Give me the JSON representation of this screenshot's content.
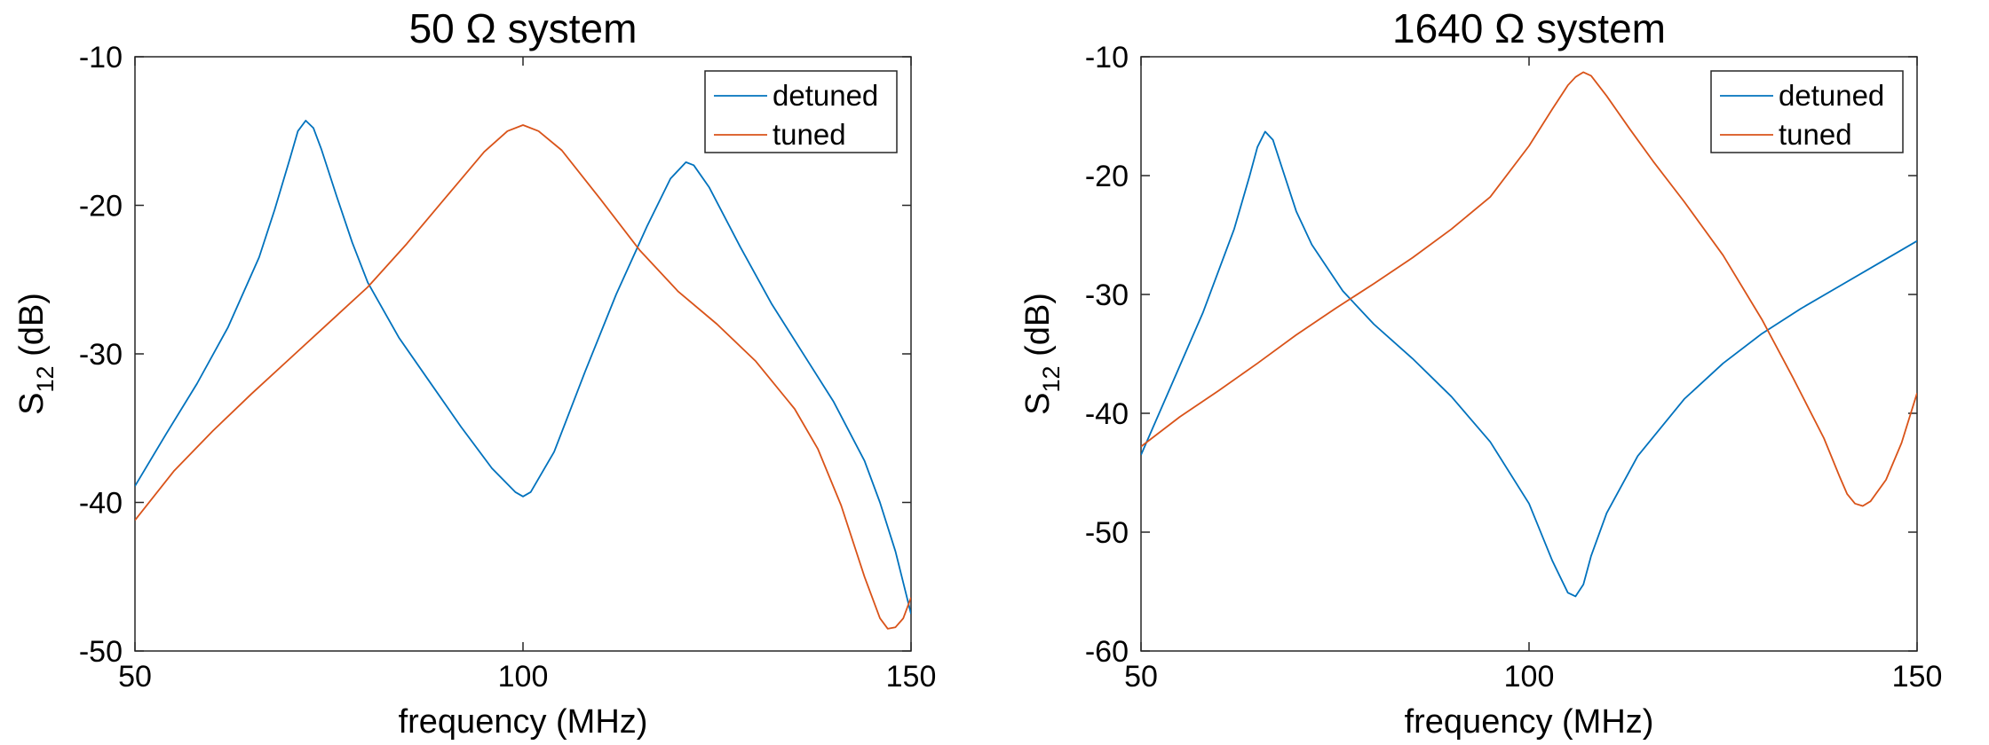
{
  "chart_data": [
    {
      "type": "line",
      "title": "50 Ω system",
      "xlabel": "frequency (MHz)",
      "ylabel_main": "S",
      "ylabel_sub": "12",
      "ylabel_tail": " (dB)",
      "xlim": [
        50,
        150
      ],
      "ylim": [
        -50,
        -10
      ],
      "xticks": [
        50,
        100,
        150
      ],
      "yticks": [
        -50,
        -40,
        -30,
        -20,
        -10
      ],
      "grid": false,
      "legend_position": "top-right",
      "series": [
        {
          "name": "detuned",
          "color": "#0072BD",
          "x": [
            50,
            54,
            58,
            62,
            66,
            68,
            70,
            71,
            72,
            73,
            74,
            76,
            78,
            80,
            84,
            88,
            92,
            96,
            99,
            100,
            101,
            104,
            108,
            112,
            116,
            119,
            121,
            122,
            124,
            128,
            132,
            136,
            140,
            144,
            146,
            148,
            150
          ],
          "y": [
            -38.9,
            -35.4,
            -32.0,
            -28.2,
            -23.5,
            -20.3,
            -16.8,
            -15.0,
            -14.3,
            -14.8,
            -16.2,
            -19.4,
            -22.5,
            -25.2,
            -28.9,
            -31.9,
            -34.9,
            -37.7,
            -39.3,
            -39.6,
            -39.3,
            -36.6,
            -31.2,
            -26.0,
            -21.4,
            -18.2,
            -17.1,
            -17.3,
            -18.8,
            -22.8,
            -26.6,
            -29.9,
            -33.2,
            -37.2,
            -40.0,
            -43.3,
            -47.5
          ]
        },
        {
          "name": "tuned",
          "color": "#D95319",
          "x": [
            50,
            55,
            60,
            65,
            70,
            75,
            80,
            85,
            90,
            95,
            98,
            100,
            102,
            105,
            110,
            115,
            120,
            125,
            130,
            135,
            138,
            141,
            144,
            146,
            147,
            148,
            149,
            150
          ],
          "y": [
            -41.2,
            -37.9,
            -35.2,
            -32.7,
            -30.3,
            -27.9,
            -25.5,
            -22.6,
            -19.5,
            -16.4,
            -15.0,
            -14.6,
            -15.0,
            -16.3,
            -19.6,
            -23.0,
            -25.8,
            -28.0,
            -30.5,
            -33.7,
            -36.4,
            -40.2,
            -45.0,
            -47.8,
            -48.5,
            -48.4,
            -47.8,
            -46.4
          ]
        }
      ]
    },
    {
      "type": "line",
      "title": "1640 Ω system",
      "xlabel": "frequency (MHz)",
      "ylabel_main": "S",
      "ylabel_sub": "12",
      "ylabel_tail": " (dB)",
      "xlim": [
        50,
        150
      ],
      "ylim": [
        -60,
        -10
      ],
      "xticks": [
        50,
        100,
        150
      ],
      "yticks": [
        -60,
        -50,
        -40,
        -30,
        -20,
        -10
      ],
      "grid": false,
      "legend_position": "top-right",
      "series": [
        {
          "name": "detuned",
          "color": "#0072BD",
          "x": [
            50,
            54,
            58,
            62,
            64,
            65,
            66,
            67,
            68,
            70,
            72,
            76,
            80,
            85,
            90,
            95,
            100,
            103,
            105,
            106,
            107,
            108,
            110,
            114,
            120,
            125,
            130,
            135,
            140,
            145,
            150
          ],
          "y": [
            -43.5,
            -37.5,
            -31.5,
            -24.5,
            -20.0,
            -17.6,
            -16.3,
            -17.0,
            -19.0,
            -23.0,
            -25.8,
            -29.7,
            -32.5,
            -35.4,
            -38.6,
            -42.4,
            -47.6,
            -52.4,
            -55.1,
            -55.4,
            -54.4,
            -52.0,
            -48.4,
            -43.6,
            -38.8,
            -35.8,
            -33.3,
            -31.2,
            -29.3,
            -27.4,
            -25.5
          ]
        },
        {
          "name": "tuned",
          "color": "#D95319",
          "x": [
            50,
            55,
            60,
            65,
            70,
            75,
            80,
            85,
            90,
            95,
            100,
            103,
            105,
            106,
            107,
            108,
            110,
            113,
            116,
            120,
            125,
            130,
            134,
            138,
            140,
            141,
            142,
            143,
            144,
            146,
            148,
            150
          ],
          "y": [
            -42.8,
            -40.3,
            -38.1,
            -35.8,
            -33.4,
            -31.2,
            -29.1,
            -26.9,
            -24.5,
            -21.8,
            -17.5,
            -14.4,
            -12.4,
            -11.7,
            -11.3,
            -11.6,
            -13.3,
            -16.1,
            -18.8,
            -22.2,
            -26.7,
            -32.1,
            -37.0,
            -42.1,
            -45.3,
            -46.8,
            -47.6,
            -47.8,
            -47.4,
            -45.6,
            -42.5,
            -38.3
          ]
        }
      ]
    }
  ]
}
